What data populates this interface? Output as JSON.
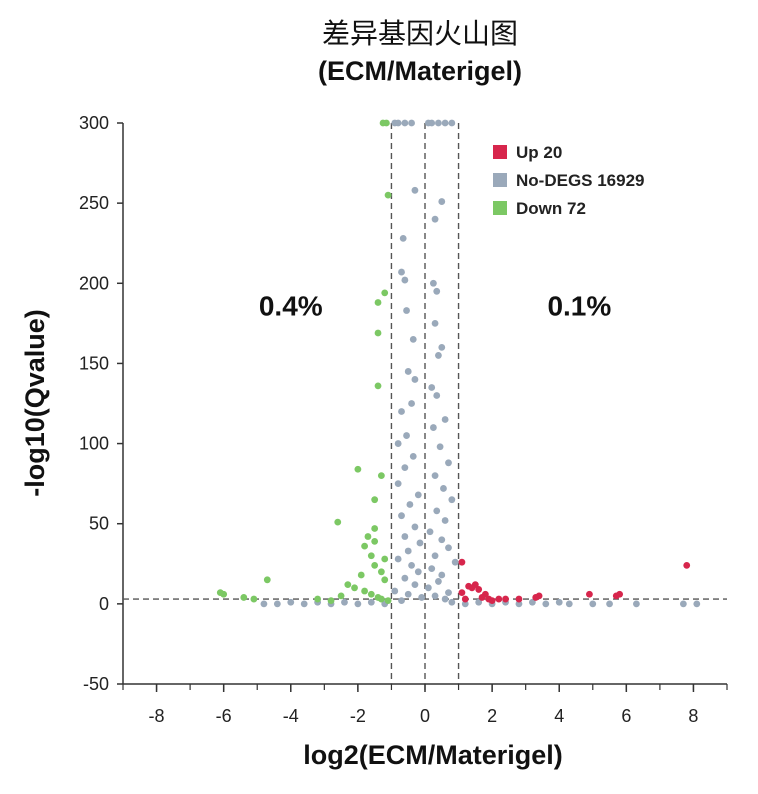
{
  "chart_data": {
    "type": "scatter",
    "title": "差异基因火山图",
    "subtitle": "(ECM/Materigel)",
    "xlabel": "log2(ECM/Materigel)",
    "ylabel": "-log10(Qvalue)",
    "xlim": [
      -9,
      9
    ],
    "ylim": [
      -50,
      300
    ],
    "x_ticks": [
      -8,
      -6,
      -4,
      -2,
      0,
      2,
      4,
      6,
      8
    ],
    "y_ticks": [
      -50,
      0,
      50,
      100,
      150,
      200,
      250,
      300
    ],
    "threshold_lines": {
      "x": [
        -1,
        0,
        1
      ],
      "y": 3
    },
    "annotations": [
      {
        "text": "0.4%",
        "x": -4,
        "y": 180
      },
      {
        "text": "0.1%",
        "x": 4.6,
        "y": 180
      }
    ],
    "legend": {
      "position": "top-right"
    },
    "series": [
      {
        "name": "Up 20",
        "color": "#d7264c",
        "points": [
          [
            7.8,
            24
          ],
          [
            5.8,
            6
          ],
          [
            5.7,
            5
          ],
          [
            4.9,
            6
          ],
          [
            3.4,
            5
          ],
          [
            3.3,
            4
          ],
          [
            2.8,
            3
          ],
          [
            2.4,
            3
          ],
          [
            2.2,
            3
          ],
          [
            2.0,
            2
          ],
          [
            1.9,
            3
          ],
          [
            1.8,
            6
          ],
          [
            1.7,
            4
          ],
          [
            1.6,
            9
          ],
          [
            1.5,
            12
          ],
          [
            1.4,
            10
          ],
          [
            1.3,
            11
          ],
          [
            1.1,
            26
          ],
          [
            1.1,
            7
          ],
          [
            1.2,
            3
          ]
        ]
      },
      {
        "name": "No-DEGS 16929",
        "color": "#9aa9ba",
        "points": [
          [
            -0.9,
            300
          ],
          [
            -0.8,
            300
          ],
          [
            -0.6,
            300
          ],
          [
            -0.4,
            300
          ],
          [
            0.1,
            300
          ],
          [
            0.2,
            300
          ],
          [
            0.4,
            300
          ],
          [
            0.6,
            300
          ],
          [
            0.8,
            300
          ],
          [
            -0.3,
            258
          ],
          [
            0.5,
            251
          ],
          [
            -0.65,
            228
          ],
          [
            0.3,
            240
          ],
          [
            -0.7,
            207
          ],
          [
            -0.6,
            202
          ],
          [
            0.25,
            200
          ],
          [
            0.35,
            195
          ],
          [
            -0.55,
            183
          ],
          [
            0.3,
            175
          ],
          [
            -0.35,
            165
          ],
          [
            0.5,
            160
          ],
          [
            0.4,
            155
          ],
          [
            -0.5,
            145
          ],
          [
            -0.3,
            140
          ],
          [
            0.2,
            135
          ],
          [
            0.35,
            130
          ],
          [
            -0.4,
            125
          ],
          [
            -0.7,
            120
          ],
          [
            0.6,
            115
          ],
          [
            0.25,
            110
          ],
          [
            -0.55,
            105
          ],
          [
            -0.8,
            100
          ],
          [
            0.45,
            98
          ],
          [
            -0.35,
            92
          ],
          [
            0.7,
            88
          ],
          [
            -0.6,
            85
          ],
          [
            0.3,
            80
          ],
          [
            -0.8,
            75
          ],
          [
            0.55,
            72
          ],
          [
            -0.2,
            68
          ],
          [
            0.8,
            65
          ],
          [
            -0.45,
            62
          ],
          [
            0.35,
            58
          ],
          [
            -0.7,
            55
          ],
          [
            0.6,
            52
          ],
          [
            -0.3,
            48
          ],
          [
            0.15,
            45
          ],
          [
            -0.6,
            42
          ],
          [
            0.5,
            40
          ],
          [
            -0.15,
            38
          ],
          [
            0.7,
            35
          ],
          [
            -0.5,
            33
          ],
          [
            0.3,
            30
          ],
          [
            -0.8,
            28
          ],
          [
            0.9,
            26
          ],
          [
            -0.4,
            24
          ],
          [
            0.2,
            22
          ],
          [
            -0.2,
            20
          ],
          [
            0.5,
            18
          ],
          [
            -0.6,
            16
          ],
          [
            0.4,
            14
          ],
          [
            -0.3,
            12
          ],
          [
            0.1,
            10
          ],
          [
            -0.9,
            8
          ],
          [
            0.7,
            7
          ],
          [
            -0.5,
            6
          ],
          [
            0.3,
            5
          ],
          [
            -0.1,
            4
          ],
          [
            0.6,
            3
          ],
          [
            -0.7,
            2
          ],
          [
            0.8,
            1
          ],
          [
            -4.8,
            0
          ],
          [
            -4.4,
            0
          ],
          [
            -4.0,
            1
          ],
          [
            -3.6,
            0
          ],
          [
            -3.2,
            1
          ],
          [
            -2.8,
            0
          ],
          [
            -2.4,
            1
          ],
          [
            -2.0,
            0
          ],
          [
            -1.6,
            1
          ],
          [
            -1.2,
            0
          ],
          [
            1.2,
            0
          ],
          [
            1.6,
            1
          ],
          [
            2.0,
            0
          ],
          [
            2.4,
            1
          ],
          [
            2.8,
            0
          ],
          [
            3.2,
            1
          ],
          [
            3.6,
            0
          ],
          [
            4.0,
            1
          ],
          [
            4.3,
            0
          ],
          [
            5.0,
            0
          ],
          [
            5.5,
            0
          ],
          [
            6.3,
            0
          ],
          [
            7.7,
            0
          ],
          [
            8.1,
            0
          ]
        ]
      },
      {
        "name": "Down 72",
        "color": "#7cc864",
        "points": [
          [
            -1.25,
            300
          ],
          [
            -1.15,
            300
          ],
          [
            -1.1,
            255
          ],
          [
            -1.2,
            194
          ],
          [
            -1.4,
            188
          ],
          [
            -1.4,
            169
          ],
          [
            -1.4,
            136
          ],
          [
            -2.0,
            84
          ],
          [
            -1.3,
            80
          ],
          [
            -1.5,
            65
          ],
          [
            -2.6,
            51
          ],
          [
            -1.5,
            47
          ],
          [
            -1.7,
            42
          ],
          [
            -1.5,
            39
          ],
          [
            -1.8,
            36
          ],
          [
            -1.6,
            30
          ],
          [
            -1.2,
            28
          ],
          [
            -1.5,
            24
          ],
          [
            -1.3,
            20
          ],
          [
            -1.9,
            18
          ],
          [
            -1.2,
            15
          ],
          [
            -4.7,
            15
          ],
          [
            -6.1,
            7
          ],
          [
            -6.0,
            6
          ],
          [
            -2.3,
            12
          ],
          [
            -2.1,
            10
          ],
          [
            -1.8,
            8
          ],
          [
            -1.6,
            6
          ],
          [
            -2.5,
            5
          ],
          [
            -3.2,
            3
          ],
          [
            -2.8,
            2
          ],
          [
            -5.4,
            4
          ],
          [
            -5.1,
            3
          ],
          [
            -1.4,
            4
          ],
          [
            -1.3,
            3
          ],
          [
            -1.1,
            2
          ]
        ]
      }
    ]
  }
}
